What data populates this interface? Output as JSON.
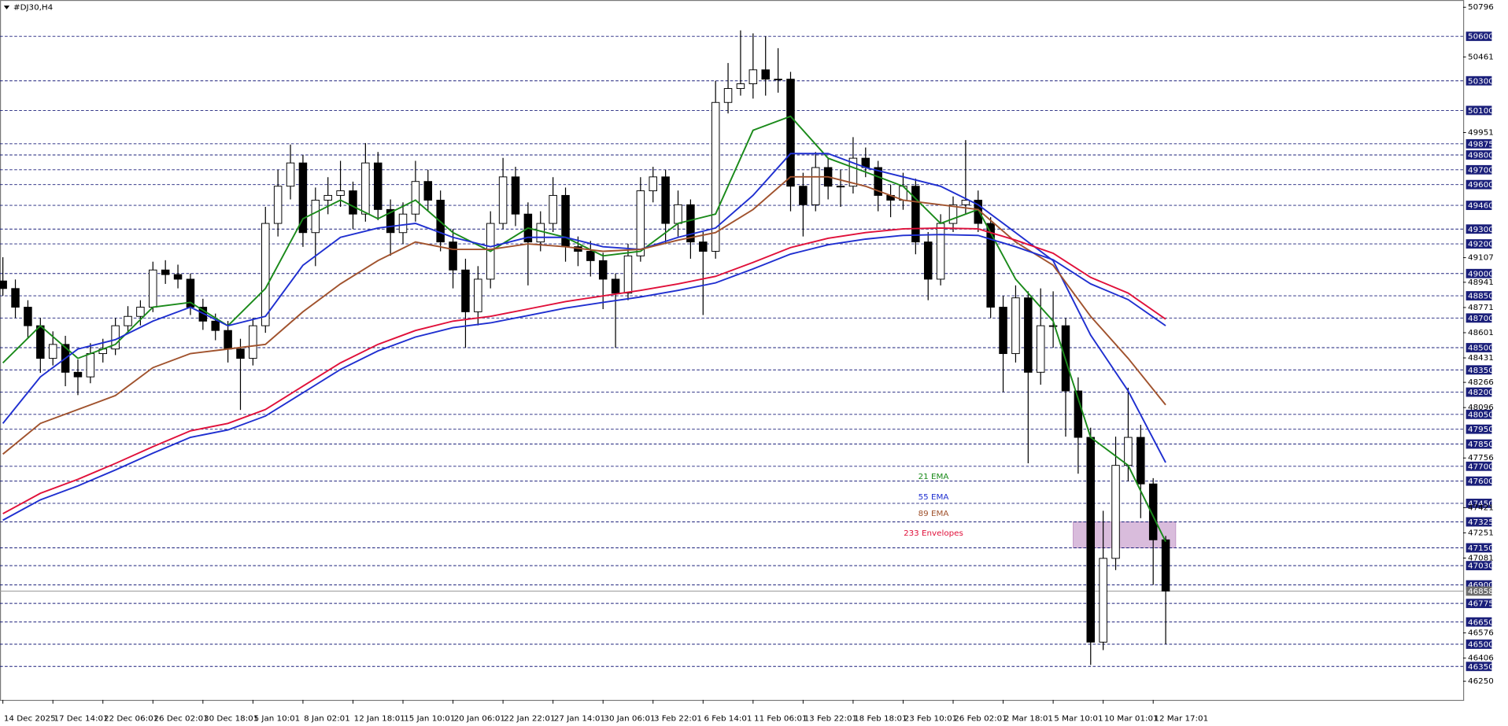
{
  "chart_data": {
    "type": "candlestick",
    "title": "#DJ30,H4",
    "x": [
      0,
      1,
      2,
      3,
      4,
      5,
      6,
      7,
      8,
      9,
      10,
      11,
      12,
      13,
      14,
      15,
      16,
      17,
      18,
      19,
      20,
      21,
      22,
      23,
      24,
      25,
      26,
      27,
      28,
      29,
      30,
      31,
      32,
      33,
      34,
      35,
      36,
      37,
      38,
      39,
      40,
      41,
      42,
      43,
      44,
      45,
      46,
      47,
      48,
      49,
      50,
      51,
      52,
      53,
      54,
      55,
      56,
      57,
      58,
      59,
      60,
      61,
      62,
      63,
      64,
      65,
      66,
      67,
      68,
      69,
      70,
      71,
      72,
      73,
      74,
      75,
      76,
      77,
      78,
      79,
      80,
      81,
      82,
      83,
      84,
      85,
      86,
      87,
      88,
      89,
      90,
      91,
      92,
      93
    ],
    "open": [
      48950,
      48899,
      48773,
      48648,
      48428,
      48522,
      48334,
      48303,
      48460,
      48491,
      48648,
      48711,
      48773,
      49024,
      48993,
      48962,
      48773,
      48679,
      48616,
      48491,
      48428,
      48648,
      49338,
      49589,
      49746,
      49276,
      49495,
      49527,
      49558,
      49401,
      49746,
      49432,
      49276,
      49401,
      49621,
      49495,
      49213,
      49024,
      48742,
      48962,
      49338,
      49652,
      49401,
      49213,
      49338,
      49527,
      49181,
      49150,
      49087,
      48962,
      48868,
      49119,
      49558,
      49652,
      49338,
      49464,
      49213,
      49150,
      50154,
      50248,
      50280,
      50374,
      50311,
      50311,
      49589,
      49464,
      49715,
      49589,
      49589,
      49778,
      49715,
      49527,
      49495,
      49589,
      49213,
      48962,
      49338,
      49464,
      49495,
      49338,
      48773,
      48460,
      48836,
      48334,
      48648,
      48648,
      48208,
      47895,
      46514,
      47079,
      47706,
      47895,
      47581,
      47204
    ],
    "high": [
      49110,
      48960,
      48820,
      48700,
      48610,
      48580,
      48420,
      48530,
      48560,
      48700,
      48780,
      48820,
      49080,
      49090,
      49060,
      49000,
      48830,
      48730,
      48680,
      48560,
      48700,
      49450,
      49700,
      49870,
      49800,
      49580,
      49650,
      49760,
      49620,
      49880,
      49820,
      49500,
      49480,
      49760,
      49700,
      49560,
      49300,
      49100,
      49050,
      49420,
      49780,
      49720,
      49480,
      49420,
      49650,
      49580,
      49250,
      49220,
      49140,
      49000,
      49200,
      49650,
      49720,
      49700,
      49560,
      49500,
      49280,
      50300,
      50420,
      50640,
      50620,
      50600,
      50520,
      50360,
      49680,
      49820,
      49780,
      49700,
      49920,
      49850,
      49760,
      49600,
      49680,
      49640,
      49280,
      49400,
      49520,
      49900,
      49560,
      49380,
      48850,
      48920,
      48880,
      48900,
      48880,
      48700,
      48300,
      47960,
      47400,
      47900,
      48230,
      47980,
      47620,
      47230
    ],
    "low": [
      48850,
      48700,
      48560,
      48330,
      48380,
      48240,
      48180,
      48260,
      48400,
      48450,
      48600,
      48650,
      48740,
      48930,
      48900,
      48720,
      48620,
      48550,
      48400,
      48080,
      48380,
      48600,
      49250,
      49500,
      49180,
      49050,
      49400,
      49450,
      49300,
      49350,
      49360,
      49120,
      49200,
      49350,
      49420,
      49150,
      48900,
      48500,
      48650,
      48900,
      49300,
      49320,
      48920,
      49150,
      49280,
      49080,
      49050,
      48980,
      48760,
      48500,
      48820,
      49080,
      49480,
      49200,
      49250,
      49100,
      48720,
      49100,
      50080,
      50200,
      50180,
      50200,
      50220,
      49420,
      49250,
      49420,
      49500,
      49450,
      49540,
      49650,
      49420,
      49380,
      49430,
      49130,
      48820,
      48920,
      49280,
      49400,
      49280,
      48700,
      48200,
      48400,
      47720,
      48250,
      48500,
      47900,
      47650,
      46360,
      46460,
      47000,
      47600,
      47350,
      46900,
      46500
    ],
    "close": [
      48899,
      48773,
      48648,
      48428,
      48522,
      48334,
      48303,
      48460,
      48491,
      48648,
      48711,
      48773,
      49024,
      48993,
      48962,
      48773,
      48679,
      48616,
      48491,
      48428,
      48648,
      49338,
      49589,
      49746,
      49276,
      49495,
      49527,
      49558,
      49401,
      49746,
      49432,
      49276,
      49401,
      49621,
      49495,
      49213,
      49024,
      48742,
      48962,
      49338,
      49652,
      49401,
      49213,
      49338,
      49527,
      49181,
      49150,
      49087,
      48962,
      48868,
      49119,
      49558,
      49652,
      49338,
      49464,
      49213,
      49150,
      50154,
      50248,
      50280,
      50374,
      50311,
      50311,
      49589,
      49464,
      49715,
      49589,
      49589,
      49778,
      49715,
      49527,
      49495,
      49589,
      49213,
      48962,
      49338,
      49464,
      49495,
      49338,
      48773,
      48460,
      48836,
      48334,
      48648,
      48648,
      48208,
      47895,
      46514,
      47079,
      47706,
      47895,
      47581,
      47204,
      46858
    ],
    "color_up": "#ffffff",
    "color_down": "#000000",
    "xlim": [
      -0.23,
      116.79
    ],
    "ylim": [
      46124,
      50845
    ],
    "xticks": [
      {
        "value": 0,
        "label": "14 Dec 2025"
      },
      {
        "value": 4,
        "label": "17 Dec 14:01"
      },
      {
        "value": 8,
        "label": "22 Dec 06:01"
      },
      {
        "value": 12,
        "label": "26 Dec 02:01"
      },
      {
        "value": 16,
        "label": "30 Dec 18:01"
      },
      {
        "value": 20,
        "label": "5 Jan 10:01"
      },
      {
        "value": 24,
        "label": "8 Jan 02:01"
      },
      {
        "value": 28,
        "label": "12 Jan 18:01"
      },
      {
        "value": 32,
        "label": "15 Jan 10:01"
      },
      {
        "value": 36,
        "label": "20 Jan 06:01"
      },
      {
        "value": 40,
        "label": "22 Jan 22:01"
      },
      {
        "value": 44,
        "label": "27 Jan 14:01"
      },
      {
        "value": 48,
        "label": "30 Jan 06:01"
      },
      {
        "value": 52,
        "label": "3 Feb 22:01"
      },
      {
        "value": 56,
        "label": "6 Feb 14:01"
      },
      {
        "value": 60,
        "label": "11 Feb 06:01"
      },
      {
        "value": 64,
        "label": "13 Feb 22:01"
      },
      {
        "value": 68,
        "label": "18 Feb 18:01"
      },
      {
        "value": 72,
        "label": "23 Feb 10:01"
      },
      {
        "value": 76,
        "label": "26 Feb 02:01"
      },
      {
        "value": 80,
        "label": "2 Mar 18:01"
      },
      {
        "value": 84,
        "label": "5 Mar 10:01"
      },
      {
        "value": 88,
        "label": "10 Mar 01:01"
      },
      {
        "value": 92,
        "label": "12 Mar 17:01"
      }
    ],
    "yticks": [
      50796,
      50461,
      49951,
      49107,
      48941,
      48771,
      48601,
      48431,
      48266,
      48096,
      47756,
      47421,
      47251,
      47081,
      46576,
      46406,
      46250
    ],
    "levels": [
      50600,
      50300,
      50100,
      49875,
      49800,
      49700,
      49600,
      49460,
      49300,
      49200,
      49000,
      48850,
      48700,
      48500,
      48350,
      48200,
      48050,
      47950,
      47850,
      47700,
      47600,
      47450,
      47325,
      47150,
      47030,
      46900,
      46775,
      46650,
      46500,
      46350
    ],
    "level_color": "#1a1f7a",
    "current_price": 46858,
    "zone": {
      "x": [
        85.6,
        93.8
      ],
      "y": [
        47150,
        47325
      ],
      "color": "#d9bcdc"
    },
    "series": [
      {
        "name": "21 EMA",
        "color": "#1a8a1a",
        "x": [
          0,
          3,
          6,
          9,
          12,
          15,
          18,
          21,
          24,
          27,
          30,
          33,
          36,
          39,
          42,
          45,
          48,
          51,
          54,
          57,
          60,
          63,
          66,
          69,
          72,
          75,
          78,
          81,
          84,
          87,
          90,
          93
        ],
        "values": [
          48397,
          48648,
          48428,
          48522,
          48773,
          48805,
          48648,
          48899,
          49370,
          49495,
          49370,
          49495,
          49276,
          49150,
          49307,
          49244,
          49119,
          49150,
          49338,
          49401,
          49966,
          50060,
          49778,
          49684,
          49589,
          49338,
          49432,
          48962,
          48679,
          47895,
          47706,
          47192
        ]
      },
      {
        "name": "55 EMA",
        "color": "#1f2fd0",
        "x": [
          0,
          3,
          6,
          9,
          12,
          15,
          18,
          21,
          24,
          27,
          30,
          33,
          36,
          39,
          42,
          45,
          48,
          51,
          54,
          57,
          60,
          63,
          66,
          69,
          72,
          75,
          78,
          81,
          84,
          87,
          90,
          93
        ],
        "values": [
          47989,
          48303,
          48491,
          48554,
          48679,
          48773,
          48648,
          48711,
          49056,
          49244,
          49307,
          49338,
          49244,
          49181,
          49244,
          49244,
          49181,
          49163,
          49244,
          49307,
          49527,
          49809,
          49809,
          49715,
          49652,
          49589,
          49464,
          49276,
          49087,
          48585,
          48208,
          47725
        ]
      },
      {
        "name": "89 EMA",
        "color": "#a0522d",
        "x": [
          0,
          3,
          6,
          9,
          12,
          15,
          18,
          21,
          24,
          27,
          30,
          33,
          36,
          39,
          42,
          45,
          48,
          51,
          54,
          57,
          60,
          63,
          66,
          69,
          72,
          75,
          78,
          81,
          84,
          87,
          90,
          93
        ],
        "values": [
          47782,
          47989,
          48083,
          48177,
          48365,
          48460,
          48491,
          48522,
          48742,
          48930,
          49087,
          49213,
          49163,
          49163,
          49200,
          49181,
          49150,
          49163,
          49225,
          49276,
          49432,
          49652,
          49652,
          49589,
          49495,
          49464,
          49432,
          49213,
          49056,
          48711,
          48428,
          48114
        ]
      },
      {
        "name": "233 Envelopes",
        "color": "#e0103a",
        "lower_color": "#1f2fd0",
        "x": [
          0,
          3,
          6,
          9,
          12,
          15,
          18,
          21,
          24,
          27,
          30,
          33,
          36,
          39,
          42,
          45,
          48,
          51,
          54,
          57,
          60,
          63,
          66,
          69,
          72,
          75,
          78,
          81,
          84,
          87,
          90,
          93
        ],
        "values": [
          47380,
          47518,
          47612,
          47719,
          47832,
          47939,
          47989,
          48083,
          48240,
          48397,
          48522,
          48616,
          48679,
          48711,
          48761,
          48811,
          48849,
          48886,
          48930,
          48981,
          49075,
          49175,
          49238,
          49276,
          49301,
          49307,
          49301,
          49225,
          49137,
          48974,
          48868,
          48692
        ],
        "lower": [
          47336,
          47474,
          47568,
          47675,
          47788,
          47895,
          47945,
          48039,
          48196,
          48353,
          48478,
          48572,
          48635,
          48667,
          48717,
          48767,
          48805,
          48842,
          48886,
          48937,
          49031,
          49131,
          49194,
          49232,
          49257,
          49263,
          49257,
          49181,
          49093,
          48930,
          48824,
          48648
        ]
      }
    ]
  }
}
